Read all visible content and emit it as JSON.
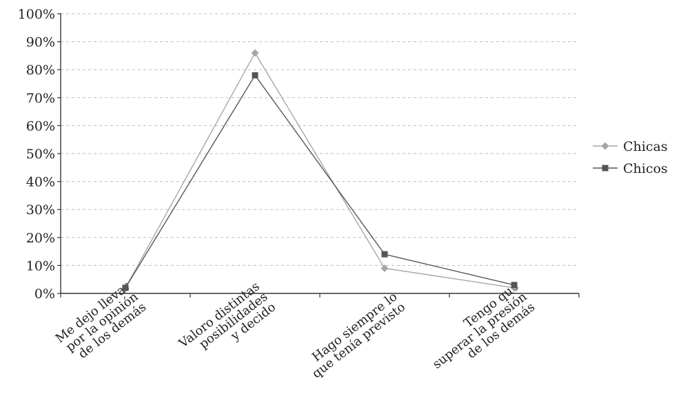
{
  "chart_data": {
    "type": "line",
    "title": "",
    "xlabel": "",
    "ylabel": "",
    "categories": [
      [
        "Me dejo llevar",
        "por la opinión",
        "de los demás"
      ],
      [
        "Valoro distintas",
        "posibilidades",
        "y decido"
      ],
      [
        "Hago siempre lo",
        "que tenía previsto"
      ],
      [
        "Tengo que",
        "superar la presión",
        "de los demás"
      ]
    ],
    "ylim": [
      0,
      100
    ],
    "yticks": [
      "0%",
      "10%",
      "20%",
      "30%",
      "40%",
      "50%",
      "60%",
      "70%",
      "80%",
      "90%",
      "100%"
    ],
    "grid": "horizontal dashed",
    "legend_position": "right",
    "series": [
      {
        "name": "Chicas",
        "marker": "diamond",
        "color": "#a6a6a6",
        "values": [
          2,
          86,
          9,
          2
        ]
      },
      {
        "name": "Chicos",
        "marker": "square",
        "color": "#555555",
        "values": [
          2,
          78,
          14,
          3
        ]
      }
    ]
  }
}
